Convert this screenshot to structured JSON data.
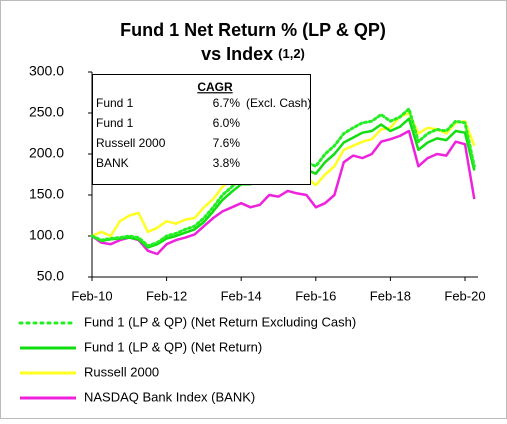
{
  "chart_data": {
    "type": "line",
    "title": [
      "Fund 1 Net Return % (LP & QP)",
      "vs Index"
    ],
    "title_note": "(1,2)",
    "categories": [
      "Feb-10",
      null,
      null,
      null,
      null,
      null,
      null,
      null,
      "Feb-12",
      null,
      null,
      null,
      null,
      null,
      null,
      null,
      "Feb-14",
      null,
      null,
      null,
      null,
      null,
      null,
      null,
      "Feb-16",
      null,
      null,
      null,
      null,
      null,
      null,
      null,
      "Feb-18",
      null,
      null,
      null,
      null,
      null,
      null,
      null,
      "Feb-20",
      null
    ],
    "ylim": [
      50,
      300
    ],
    "yticks": [
      {
        "value": 50,
        "label": "50.0"
      },
      {
        "value": 100,
        "label": "100.0"
      },
      {
        "value": 150,
        "label": "150.0"
      },
      {
        "value": 200,
        "label": "200.0"
      },
      {
        "value": 250,
        "label": "250.0"
      },
      {
        "value": 300,
        "label": "300.0"
      }
    ],
    "grid": false,
    "legend": "bottom",
    "series": [
      {
        "name": "Fund 1 (LP & QP) (Net Return Excluding Cash)",
        "color": "#22ee22",
        "style": "dotted",
        "values": [
          100,
          95,
          97,
          98,
          100,
          98,
          88,
          92,
          100,
          103,
          108,
          112,
          122,
          135,
          150,
          160,
          170,
          170,
          178,
          185,
          195,
          200,
          195,
          190,
          185,
          200,
          210,
          225,
          232,
          238,
          240,
          248,
          240,
          245,
          255,
          215,
          225,
          230,
          228,
          240,
          238,
          185
        ]
      },
      {
        "name": "Fund 1 (LP & QP) (Net Return)",
        "color": "#11dd11",
        "style": "solid",
        "values": [
          100,
          94,
          96,
          97,
          98,
          96,
          86,
          90,
          97,
          100,
          104,
          108,
          117,
          130,
          144,
          154,
          163,
          163,
          170,
          177,
          186,
          191,
          186,
          181,
          176,
          190,
          200,
          214,
          220,
          226,
          228,
          236,
          228,
          233,
          243,
          205,
          214,
          219,
          217,
          228,
          226,
          180
        ]
      },
      {
        "name": "Russell 2000",
        "color": "#ffff22",
        "style": "solid",
        "values": [
          100,
          105,
          100,
          118,
          125,
          128,
          105,
          110,
          118,
          115,
          120,
          122,
          135,
          145,
          160,
          170,
          175,
          168,
          175,
          180,
          182,
          190,
          178,
          172,
          162,
          175,
          185,
          205,
          210,
          215,
          218,
          230,
          232,
          245,
          250,
          225,
          232,
          230,
          225,
          238,
          240,
          210
        ]
      },
      {
        "name": "NASDAQ Bank Index (BANK)",
        "color": "#ee22dd",
        "style": "solid",
        "values": [
          100,
          92,
          90,
          95,
          98,
          95,
          82,
          78,
          90,
          95,
          98,
          102,
          112,
          122,
          130,
          135,
          140,
          135,
          138,
          150,
          148,
          155,
          152,
          150,
          135,
          140,
          150,
          190,
          198,
          195,
          200,
          215,
          218,
          222,
          228,
          185,
          195,
          200,
          198,
          215,
          212,
          145
        ]
      }
    ],
    "cagr_table": {
      "title": "CAGR",
      "rows": [
        [
          "Fund 1",
          "6.7%",
          "(Excl. Cash)"
        ],
        [
          "Fund 1",
          "6.0%"
        ],
        [
          "Russell 2000",
          "7.6%"
        ],
        [
          "BANK",
          "3.8%"
        ]
      ]
    }
  }
}
